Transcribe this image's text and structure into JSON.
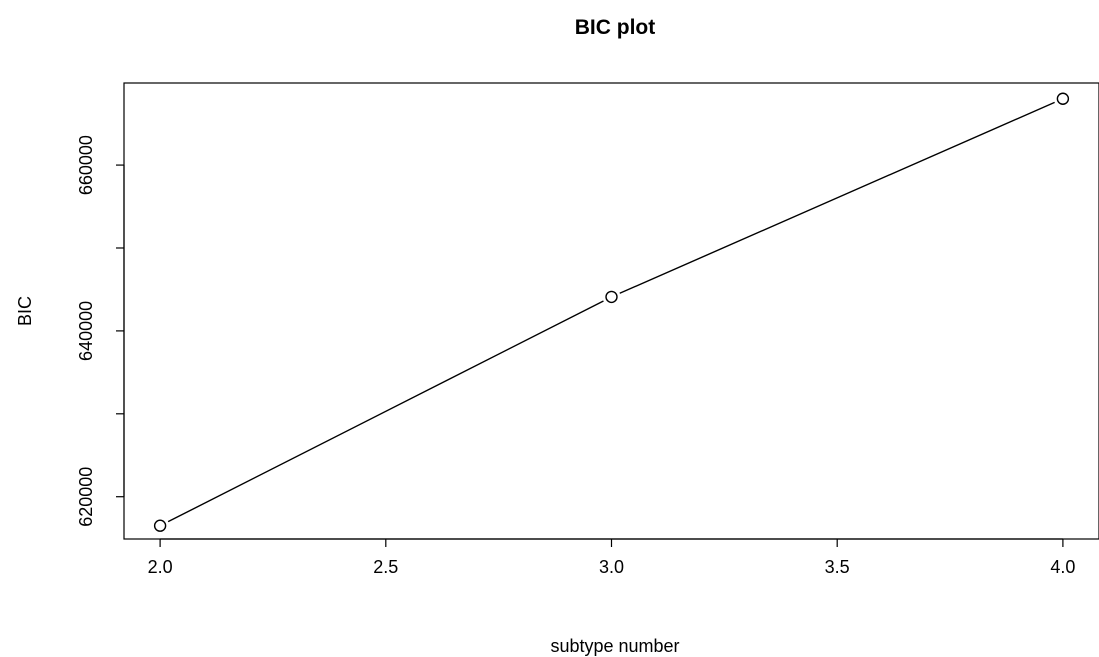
{
  "chart_data": {
    "type": "line",
    "title": "BIC plot",
    "xlabel": "subtype number",
    "ylabel": "BIC",
    "x": [
      2,
      3,
      4
    ],
    "series": [
      {
        "values": [
          616500,
          644100,
          668000
        ]
      }
    ],
    "xlim": [
      1.92,
      4.08
    ],
    "ylim": [
      614900,
      669900
    ],
    "xticks": [
      2.0,
      2.5,
      3.0,
      3.5,
      4.0
    ],
    "xtick_labels": [
      "2.0",
      "2.5",
      "3.0",
      "3.5",
      "4.0"
    ],
    "yticks": [
      620000,
      630000,
      640000,
      650000,
      660000
    ],
    "ytick_labels": [
      "620000",
      "",
      "640000",
      "",
      "660000"
    ],
    "point_style": "open-circle",
    "line_style": "solid",
    "grid": false,
    "colors": {
      "line": "#000000",
      "point_fill": "#ffffff",
      "background": "#ffffff"
    }
  }
}
